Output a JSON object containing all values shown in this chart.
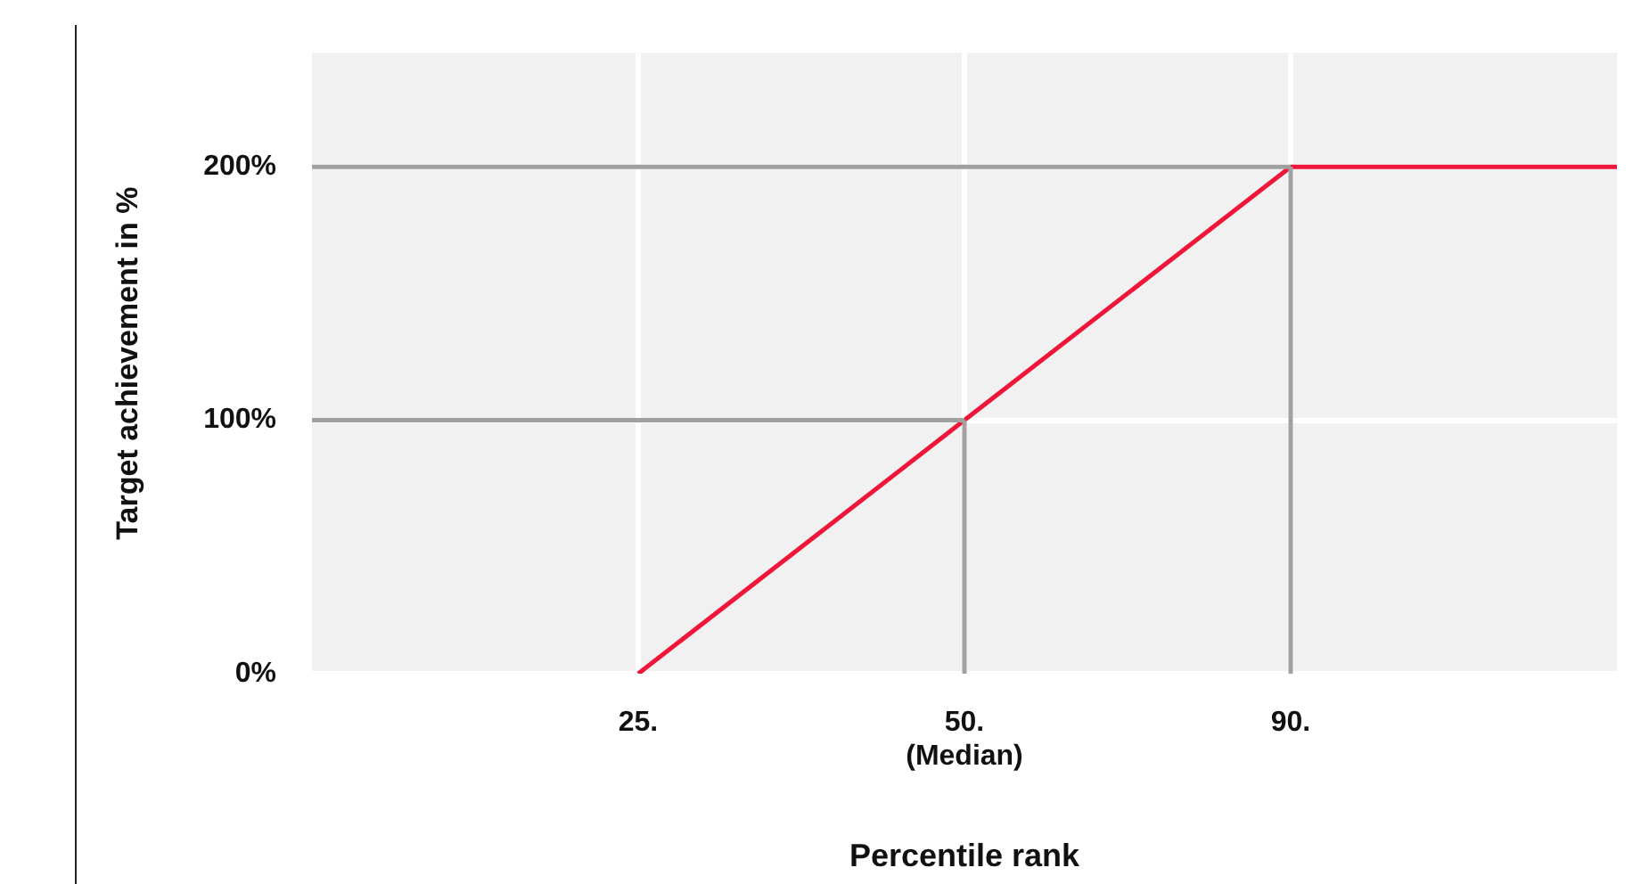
{
  "chart_data": {
    "type": "line",
    "xlabel": "Percentile rank",
    "ylabel": "Target achievement in %",
    "categories": [
      null,
      "25.",
      "50.\n(Median)",
      "90.",
      null
    ],
    "series": [
      {
        "color": "#a0a0a0",
        "values": [
          100,
          100,
          100,
          null,
          null
        ]
      },
      {
        "color": "#a0a0a0",
        "values": [
          200,
          200,
          200,
          200,
          null
        ]
      },
      {
        "color": "#a0a0a0",
        "x": [
          "50.\n(Median)",
          "50.\n(Median)"
        ],
        "values": [
          0,
          100
        ]
      },
      {
        "color": "#a0a0a0",
        "x": [
          "90.",
          "90."
        ],
        "values": [
          0,
          200
        ]
      },
      {
        "color": "#f0163a",
        "values": [
          null,
          0,
          100,
          200,
          200
        ]
      }
    ],
    "ylim": [
      0,
      245
    ],
    "yticks": [
      {
        "value": 0,
        "label": "0%"
      },
      {
        "value": 100,
        "label": "100%"
      },
      {
        "value": 200,
        "label": "200%"
      }
    ],
    "grid": true,
    "legend": false,
    "marker": "none",
    "line_style": "solid"
  }
}
